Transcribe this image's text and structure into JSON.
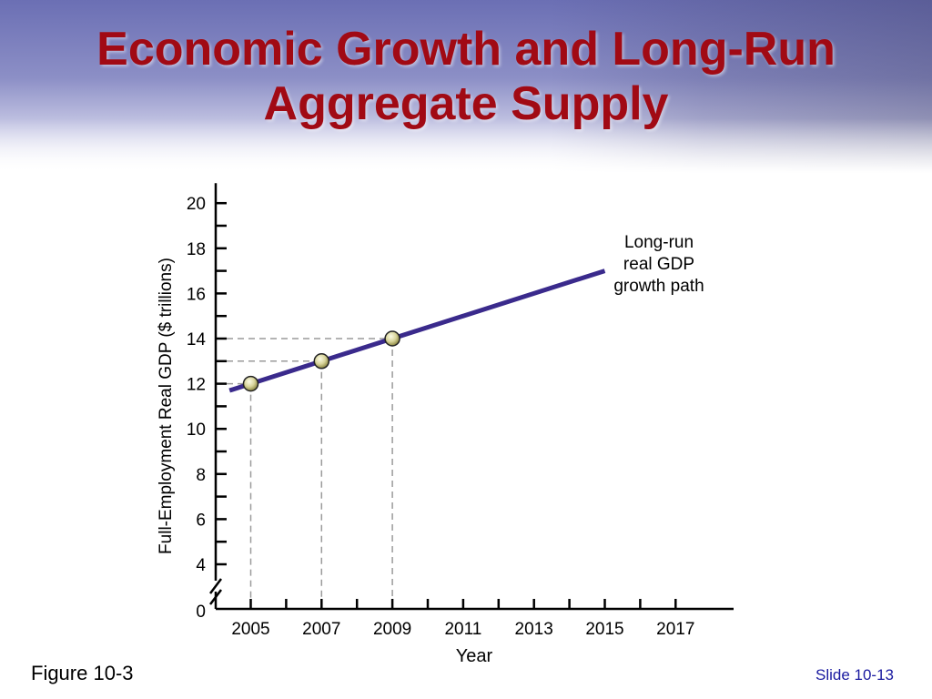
{
  "slide": {
    "title_line1": "Economic Growth and Long-Run",
    "title_line2": "Aggregate Supply",
    "figure_label": "Figure 10-3",
    "slide_number": "Slide 10-13"
  },
  "colors": {
    "title": "#a10a14",
    "line": "#3a2a8c",
    "point": "#d8d49a",
    "slide_number": "#1a1aa0"
  },
  "chart_data": {
    "type": "line",
    "title": "",
    "xlabel": "Year",
    "ylabel": "Full-Employment Real GDP ($ trillions)",
    "xlim": [
      2004,
      2018.5
    ],
    "ylim": [
      0,
      21
    ],
    "axis_break": true,
    "x_ticks": [
      2005,
      2007,
      2009,
      2011,
      2013,
      2015,
      2017
    ],
    "y_ticks": [
      0,
      4,
      6,
      8,
      10,
      12,
      14,
      16,
      18,
      20
    ],
    "series": [
      {
        "name": "Long-run real GDP growth path",
        "x": [
          2004.4,
          2015
        ],
        "y": [
          11.7,
          17.0
        ]
      }
    ],
    "highlighted_points": [
      {
        "x": 2005,
        "y": 12
      },
      {
        "x": 2007,
        "y": 13
      },
      {
        "x": 2009,
        "y": 14
      }
    ],
    "annotation": [
      "Long-run",
      "real GDP",
      "growth path"
    ]
  }
}
